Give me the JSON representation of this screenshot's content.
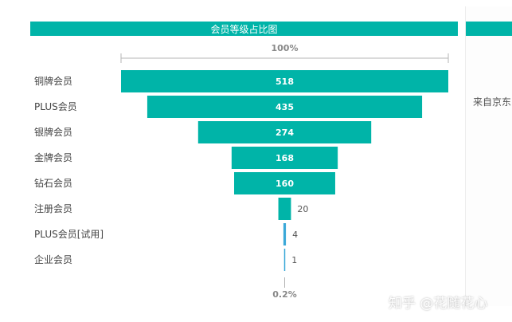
{
  "chart_data": {
    "type": "funnel",
    "title": "会员等级占比图",
    "categories": [
      "铜牌会员",
      "PLUS会员",
      "银牌会员",
      "金牌会员",
      "钻石会员",
      "注册会员",
      "PLUS会员[试用]",
      "企业会员"
    ],
    "values": [
      518,
      435,
      274,
      168,
      160,
      20,
      4,
      1
    ],
    "top_percent_label": "100%",
    "bottom_percent_label": "0.2%",
    "bar_color": "#00b4a8",
    "bar_color_thin": "#3aa8d8"
  },
  "side_panel": {
    "source_text": "来自京东"
  },
  "watermark": "知乎 @花随花心"
}
